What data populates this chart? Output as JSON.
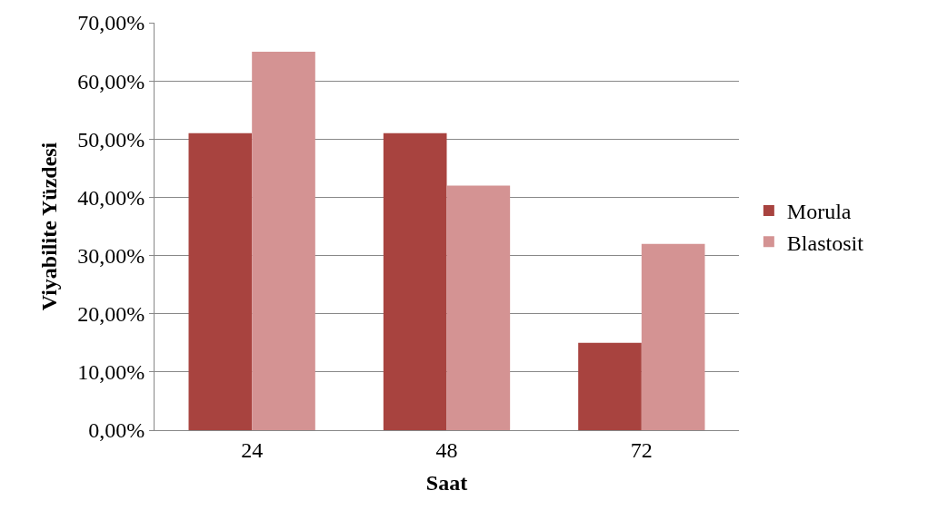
{
  "chart_data": {
    "type": "bar",
    "xlabel": "Saat",
    "ylabel": "Viyabilite Yüzdesi",
    "categories": [
      "24",
      "48",
      "72"
    ],
    "series": [
      {
        "name": "Morula",
        "color": "#a8433f",
        "values": [
          51,
          51,
          15
        ]
      },
      {
        "name": "Blastosit",
        "color": "#d49393",
        "values": [
          65,
          42,
          32
        ]
      }
    ],
    "ylim": [
      0,
      70
    ],
    "yticks": [
      {
        "value": 0,
        "label": "0,00%"
      },
      {
        "value": 10,
        "label": "10,00%"
      },
      {
        "value": 20,
        "label": "20,00%"
      },
      {
        "value": 30,
        "label": "30,00%"
      },
      {
        "value": 40,
        "label": "40,00%"
      },
      {
        "value": 50,
        "label": "50,00%"
      },
      {
        "value": 60,
        "label": "60,00%"
      },
      {
        "value": 70,
        "label": "70,00%"
      }
    ],
    "grid": "y",
    "legend": "right"
  }
}
